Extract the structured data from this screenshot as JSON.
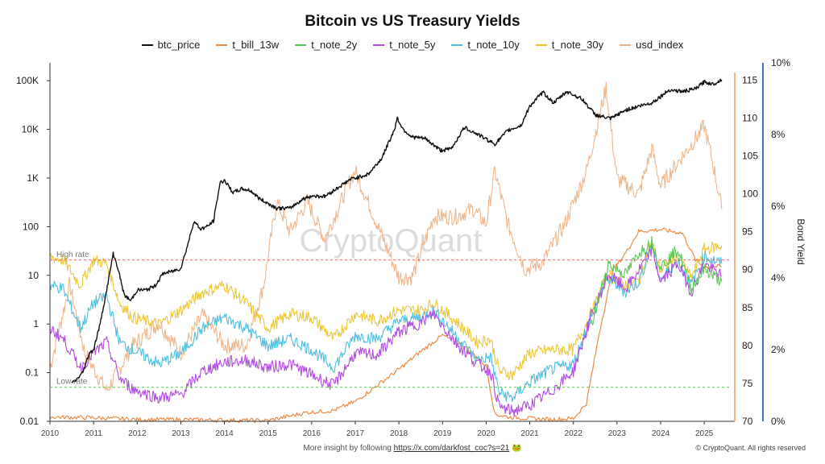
{
  "title": "Bitcoin vs US Treasury Yields",
  "watermark": "CryptoQuant",
  "footer": {
    "prefix": "More insight by following",
    "link": "https://x.com/darkfost_coc?s=21",
    "emoji": "🐸",
    "copyright": "© CryptoQuant. All rights reserved"
  },
  "colors": {
    "btc_price": "#111111",
    "t_bill_13w": "#ee8a47",
    "t_note_2y": "#5ac85a",
    "t_note_5y": "#b04de0",
    "t_note_10y": "#4fc0e0",
    "t_note_30y": "#ecc83a",
    "usd_index": "#f0b68e",
    "high_rate_line": "#e06060",
    "low_rate_line": "#60c060",
    "right_axis_bar": "#4472c4"
  },
  "chart_data": {
    "type": "line",
    "title": "Bitcoin vs US Treasury Yields",
    "x_ticks": [
      "2010",
      "2011",
      "2012",
      "2013",
      "2014",
      "2015",
      "2016",
      "2017",
      "2018",
      "2019",
      "2020",
      "2021",
      "2022",
      "2023",
      "2024",
      "2025"
    ],
    "y_left": {
      "scale": "log",
      "ticks": [
        "0.01",
        "0.1",
        "1",
        "10",
        "100",
        "1K",
        "10K",
        "100K"
      ],
      "ylim": [
        0.01,
        200000
      ]
    },
    "y_usd": {
      "ticks": [
        "70",
        "75",
        "80",
        "85",
        "90",
        "95",
        "100",
        "105",
        "110",
        "115"
      ],
      "ylim": [
        70,
        116
      ]
    },
    "y_yield": {
      "label": "Bond Yield",
      "ticks": [
        "0%",
        "2%",
        "4%",
        "6%",
        "8%",
        "10%"
      ],
      "ylim": [
        0,
        10
      ]
    },
    "annotations": [
      {
        "label": "High rate",
        "y_yield_pct": 4.5
      },
      {
        "label": "Low rate",
        "y_yield_pct": 0.95
      }
    ],
    "series": [
      {
        "name": "btc_price",
        "axis": "left",
        "x": [
          2010.5,
          2010.6,
          2010.75,
          2010.9,
          2011.0,
          2011.15,
          2011.3,
          2011.45,
          2011.55,
          2011.7,
          2011.85,
          2012.0,
          2012.2,
          2012.4,
          2012.6,
          2012.8,
          2013.0,
          2013.15,
          2013.3,
          2013.45,
          2013.6,
          2013.75,
          2013.9,
          2014.0,
          2014.2,
          2014.4,
          2014.6,
          2014.8,
          2015.0,
          2015.2,
          2015.5,
          2015.8,
          2016.0,
          2016.3,
          2016.6,
          2016.9,
          2017.0,
          2017.3,
          2017.6,
          2017.9,
          2017.96,
          2018.1,
          2018.3,
          2018.6,
          2018.96,
          2019.2,
          2019.5,
          2019.8,
          2020.2,
          2020.5,
          2020.8,
          2021.0,
          2021.3,
          2021.55,
          2021.85,
          2022.2,
          2022.5,
          2022.85,
          2023.2,
          2023.5,
          2023.8,
          2024.2,
          2024.5,
          2024.8,
          2025.0,
          2025.2,
          2025.4
        ],
        "values": [
          0.06,
          0.07,
          0.1,
          0.25,
          0.3,
          1,
          5,
          28,
          15,
          4,
          3,
          5,
          5,
          6,
          11,
          12,
          14,
          40,
          130,
          90,
          100,
          130,
          800,
          900,
          500,
          600,
          550,
          380,
          300,
          240,
          240,
          370,
          430,
          420,
          630,
          960,
          1000,
          1200,
          2500,
          10000,
          17000,
          10000,
          7000,
          6500,
          3700,
          4000,
          11000,
          8000,
          5000,
          9500,
          12000,
          30000,
          58000,
          35000,
          60000,
          42000,
          20000,
          16500,
          25000,
          30000,
          35000,
          65000,
          60000,
          68000,
          95000,
          85000,
          105000
        ]
      },
      {
        "name": "t_bill_13w",
        "axis": "yield",
        "x": [
          2010.0,
          2011.0,
          2012.0,
          2013.0,
          2014.0,
          2015.0,
          2015.9,
          2016.5,
          2017.0,
          2017.5,
          2018.0,
          2018.5,
          2019.0,
          2019.5,
          2020.0,
          2020.2,
          2020.5,
          2021.0,
          2021.5,
          2022.0,
          2022.3,
          2022.6,
          2022.9,
          2023.2,
          2023.5,
          2024.0,
          2024.5,
          2024.8,
          2025.0,
          2025.4
        ],
        "values": [
          0.12,
          0.1,
          0.05,
          0.05,
          0.03,
          0.02,
          0.25,
          0.3,
          0.55,
          1.0,
          1.45,
          1.95,
          2.4,
          2.1,
          1.55,
          0.2,
          0.12,
          0.08,
          0.05,
          0.08,
          0.5,
          2.5,
          4.2,
          4.7,
          5.3,
          5.35,
          5.25,
          4.5,
          4.3,
          4.32
        ]
      },
      {
        "name": "t_note_5y",
        "axis": "yield",
        "x": [
          2010.0,
          2010.3,
          2010.7,
          2011.0,
          2011.3,
          2011.6,
          2011.9,
          2012.5,
          2013.0,
          2013.5,
          2014.0,
          2014.5,
          2015.0,
          2015.5,
          2016.0,
          2016.5,
          2017.0,
          2017.5,
          2018.0,
          2018.5,
          2018.8,
          2019.3,
          2019.8,
          2020.1,
          2020.3,
          2020.6,
          2021.0,
          2021.5,
          2022.0,
          2022.4,
          2022.8,
          2023.2,
          2023.5,
          2023.8,
          2024.0,
          2024.4,
          2024.7,
          2025.0,
          2025.4
        ],
        "values": [
          2.6,
          2.3,
          1.5,
          1.9,
          2.2,
          1.2,
          0.9,
          0.65,
          0.75,
          1.4,
          1.65,
          1.7,
          1.5,
          1.6,
          1.3,
          1.0,
          1.9,
          1.85,
          2.5,
          2.75,
          3.0,
          2.2,
          1.6,
          1.4,
          0.4,
          0.28,
          0.45,
          0.85,
          1.4,
          2.9,
          4.1,
          3.7,
          4.2,
          4.8,
          3.9,
          4.4,
          3.6,
          4.4,
          4.05
        ]
      },
      {
        "name": "t_note_10y",
        "axis": "yield",
        "x": [
          2010.0,
          2010.3,
          2010.7,
          2011.0,
          2011.3,
          2011.6,
          2011.9,
          2012.5,
          2013.0,
          2013.5,
          2014.0,
          2014.5,
          2015.0,
          2015.5,
          2016.0,
          2016.5,
          2017.0,
          2017.5,
          2018.0,
          2018.5,
          2018.8,
          2019.3,
          2019.8,
          2020.1,
          2020.3,
          2020.6,
          2021.0,
          2021.5,
          2022.0,
          2022.4,
          2022.8,
          2023.2,
          2023.5,
          2023.8,
          2024.0,
          2024.4,
          2024.7,
          2025.0,
          2025.4
        ],
        "values": [
          3.8,
          3.7,
          2.6,
          3.3,
          3.5,
          2.2,
          2.0,
          1.6,
          1.9,
          2.6,
          2.9,
          2.6,
          2.1,
          2.3,
          2.0,
          1.5,
          2.4,
          2.3,
          2.8,
          2.9,
          3.1,
          2.4,
          1.7,
          1.8,
          0.8,
          0.65,
          1.1,
          1.45,
          1.6,
          2.9,
          4.0,
          3.6,
          3.9,
          4.9,
          3.95,
          4.5,
          3.8,
          4.6,
          4.4
        ]
      },
      {
        "name": "t_note_30y",
        "axis": "yield",
        "x": [
          2010.0,
          2010.3,
          2010.7,
          2011.0,
          2011.3,
          2011.6,
          2011.9,
          2012.5,
          2013.0,
          2013.5,
          2014.0,
          2014.5,
          2015.0,
          2015.5,
          2016.0,
          2016.5,
          2017.0,
          2017.5,
          2018.0,
          2018.5,
          2018.8,
          2019.3,
          2019.8,
          2020.1,
          2020.3,
          2020.6,
          2021.0,
          2021.5,
          2022.0,
          2022.4,
          2022.8,
          2023.2,
          2023.5,
          2023.8,
          2024.0,
          2024.4,
          2024.7,
          2025.0,
          2025.4
        ],
        "values": [
          4.6,
          4.5,
          3.8,
          4.5,
          4.4,
          3.3,
          2.9,
          2.7,
          3.1,
          3.6,
          3.8,
          3.3,
          2.6,
          3.0,
          2.9,
          2.3,
          3.0,
          2.8,
          3.1,
          3.1,
          3.3,
          2.8,
          2.2,
          2.3,
          1.4,
          1.3,
          1.9,
          2.0,
          2.0,
          3.0,
          4.1,
          3.8,
          3.9,
          5.0,
          4.2,
          4.6,
          4.0,
          4.8,
          4.9
        ]
      },
      {
        "name": "t_note_2y",
        "axis": "yield",
        "x": [
          2022.4,
          2022.8,
          2023.2,
          2023.5,
          2023.8,
          2024.0,
          2024.4,
          2024.7,
          2025.0,
          2025.4
        ],
        "values": [
          2.6,
          4.4,
          4.1,
          4.7,
          5.0,
          4.3,
          4.8,
          3.7,
          4.25,
          3.9
        ]
      },
      {
        "name": "usd_index",
        "axis": "usd",
        "x": [
          2010.0,
          2010.45,
          2010.8,
          2011.3,
          2011.9,
          2012.5,
          2013.0,
          2013.5,
          2014.0,
          2014.5,
          2014.9,
          2015.2,
          2015.5,
          2015.9,
          2016.3,
          2016.9,
          2017.0,
          2017.5,
          2018.0,
          2018.3,
          2018.8,
          2019.3,
          2019.7,
          2020.0,
          2020.2,
          2020.5,
          2020.9,
          2021.3,
          2021.8,
          2022.3,
          2022.75,
          2023.0,
          2023.5,
          2023.8,
          2024.0,
          2024.5,
          2024.9,
          2025.0,
          2025.2,
          2025.4
        ],
        "values": [
          77,
          88,
          79,
          74,
          80,
          83,
          79,
          84,
          80,
          80,
          88,
          99,
          95,
          99,
          94,
          102,
          103,
          96,
          89,
          89,
          97,
          97,
          98,
          96,
          103,
          96,
          90,
          91,
          96,
          103,
          114,
          102,
          100,
          106,
          101,
          105,
          108,
          109,
          104,
          98
        ]
      }
    ]
  }
}
